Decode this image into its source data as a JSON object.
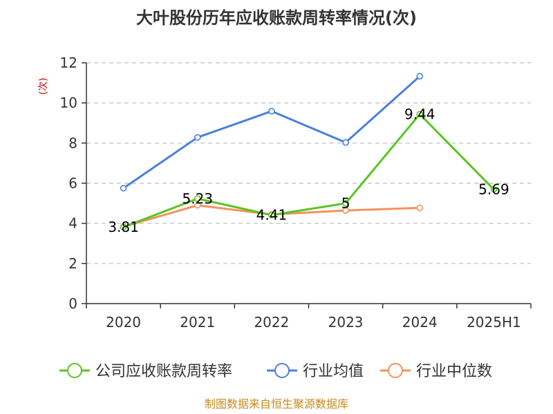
{
  "chart_data": {
    "type": "line",
    "title": "大叶股份历年应收账款周转率情况(次)",
    "ylabel": "(次)",
    "xlabel": "",
    "categories": [
      "2020",
      "2021",
      "2022",
      "2023",
      "2024",
      "2025H1"
    ],
    "ylim": [
      0,
      12
    ],
    "yticks": [
      0,
      2,
      4,
      6,
      8,
      10,
      12
    ],
    "grid": true,
    "legend_position": "bottom",
    "series": [
      {
        "name": "公司应收账款周转率",
        "color": "#5ac421",
        "values": [
          3.81,
          5.23,
          4.41,
          5,
          9.44,
          5.69
        ],
        "labels": [
          "3.81",
          "5.23",
          "4.41",
          "5",
          "9.44",
          "5.69"
        ]
      },
      {
        "name": "行业均值",
        "color": "#4a7fdb",
        "values": [
          5.75,
          8.28,
          9.59,
          8.03,
          11.33,
          null
        ]
      },
      {
        "name": "行业中位数",
        "color": "#f5915d",
        "values": [
          3.83,
          4.9,
          4.44,
          4.64,
          4.77,
          null
        ]
      }
    ]
  },
  "source": "制图数据来自恒生聚源数据库"
}
